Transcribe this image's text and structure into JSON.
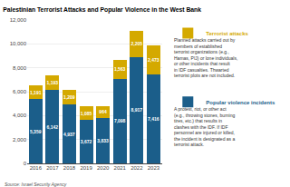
{
  "chart_data": {
    "type": "bar",
    "title": "Palestinian Terrorist Attacks and Popular Violence in the West Bank",
    "categories": [
      "2016",
      "2017",
      "2018",
      "2019",
      "2020",
      "2021",
      "2022",
      "2023"
    ],
    "series": [
      {
        "name": "Popular violence incidents",
        "color": "#1b5e8a",
        "values": [
          5359,
          6142,
          4937,
          3672,
          3833,
          7098,
          8917,
          7416
        ],
        "value_labels": [
          "5,359",
          "6,142",
          "4,937",
          "3,672",
          "3,833",
          "7,098",
          "8,917",
          "7,416"
        ]
      },
      {
        "name": "Terrorist attacks",
        "color": "#d4a900",
        "values": [
          1191,
          1193,
          1209,
          1085,
          964,
          1563,
          2205,
          2473
        ],
        "value_labels": [
          "1,191",
          "1,193",
          "1,209",
          "1,085",
          "964",
          "1,563",
          "2,205",
          "2,473"
        ]
      }
    ],
    "stacked": true,
    "data_labels": true,
    "ylim": [
      0,
      12000
    ],
    "yticks": [
      0,
      {
        "value": 2000,
        "label": "2,000"
      },
      {
        "value": 4000,
        "label": "4,000"
      },
      {
        "value": 6000,
        "label": "6,000"
      },
      {
        "value": 8000,
        "label": "8,000"
      },
      {
        "value": 10000,
        "label": "10,000"
      },
      {
        "value": 12000,
        "label": "12,000"
      }
    ],
    "grid": true,
    "legend": "right",
    "annotations": [
      "A protest, riot, or other act\n(e.g., throwing stones, burning\ntires, etc.) that results in\nclashes with the IDF. If IDF\npersonnel are injured or killed,\nthe incident is designated as a\nterrorist attack.",
      "Planned attacks carried out by\nmembers of established\nterrorist organizations (e.g.,\nHamas, PIJ) or lone individuals,\nor other incidents that result\nin IDF casualties. Thwarted\nterrorist plots are not included.",
      "Source: Israel Security Agency"
    ]
  }
}
